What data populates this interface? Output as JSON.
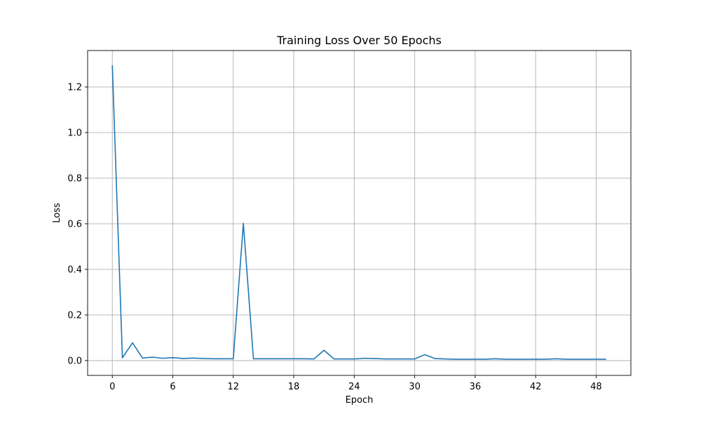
{
  "chart_data": {
    "type": "line",
    "title": "Training Loss Over 50 Epochs",
    "xlabel": "Epoch",
    "ylabel": "Loss",
    "xlim": [
      -2.45,
      51.45
    ],
    "ylim": [
      -0.065,
      1.36
    ],
    "xticks": [
      0,
      6,
      12,
      18,
      24,
      30,
      36,
      42,
      48
    ],
    "yticks": [
      0.0,
      0.2,
      0.4,
      0.6,
      0.8,
      1.0,
      1.2
    ],
    "ytick_labels": [
      "0.0",
      "0.2",
      "0.4",
      "0.6",
      "0.8",
      "1.0",
      "1.2"
    ],
    "grid": true,
    "legend": "none",
    "series": [
      {
        "color": "#1f77b4",
        "x": [
          0,
          1,
          2,
          3,
          4,
          5,
          6,
          7,
          8,
          9,
          10,
          11,
          12,
          13,
          14,
          15,
          16,
          17,
          18,
          19,
          20,
          21,
          22,
          23,
          24,
          25,
          26,
          27,
          28,
          29,
          30,
          31,
          32,
          33,
          34,
          35,
          36,
          37,
          38,
          39,
          40,
          41,
          42,
          43,
          44,
          45,
          46,
          47,
          48,
          49
        ],
        "values": [
          1.295,
          0.012,
          0.078,
          0.011,
          0.015,
          0.01,
          0.013,
          0.009,
          0.011,
          0.009,
          0.008,
          0.008,
          0.008,
          0.602,
          0.008,
          0.008,
          0.008,
          0.008,
          0.008,
          0.008,
          0.007,
          0.045,
          0.007,
          0.007,
          0.007,
          0.01,
          0.009,
          0.007,
          0.007,
          0.007,
          0.007,
          0.026,
          0.009,
          0.007,
          0.006,
          0.006,
          0.006,
          0.006,
          0.008,
          0.006,
          0.006,
          0.006,
          0.006,
          0.006,
          0.008,
          0.006,
          0.006,
          0.006,
          0.006,
          0.006
        ]
      }
    ]
  }
}
